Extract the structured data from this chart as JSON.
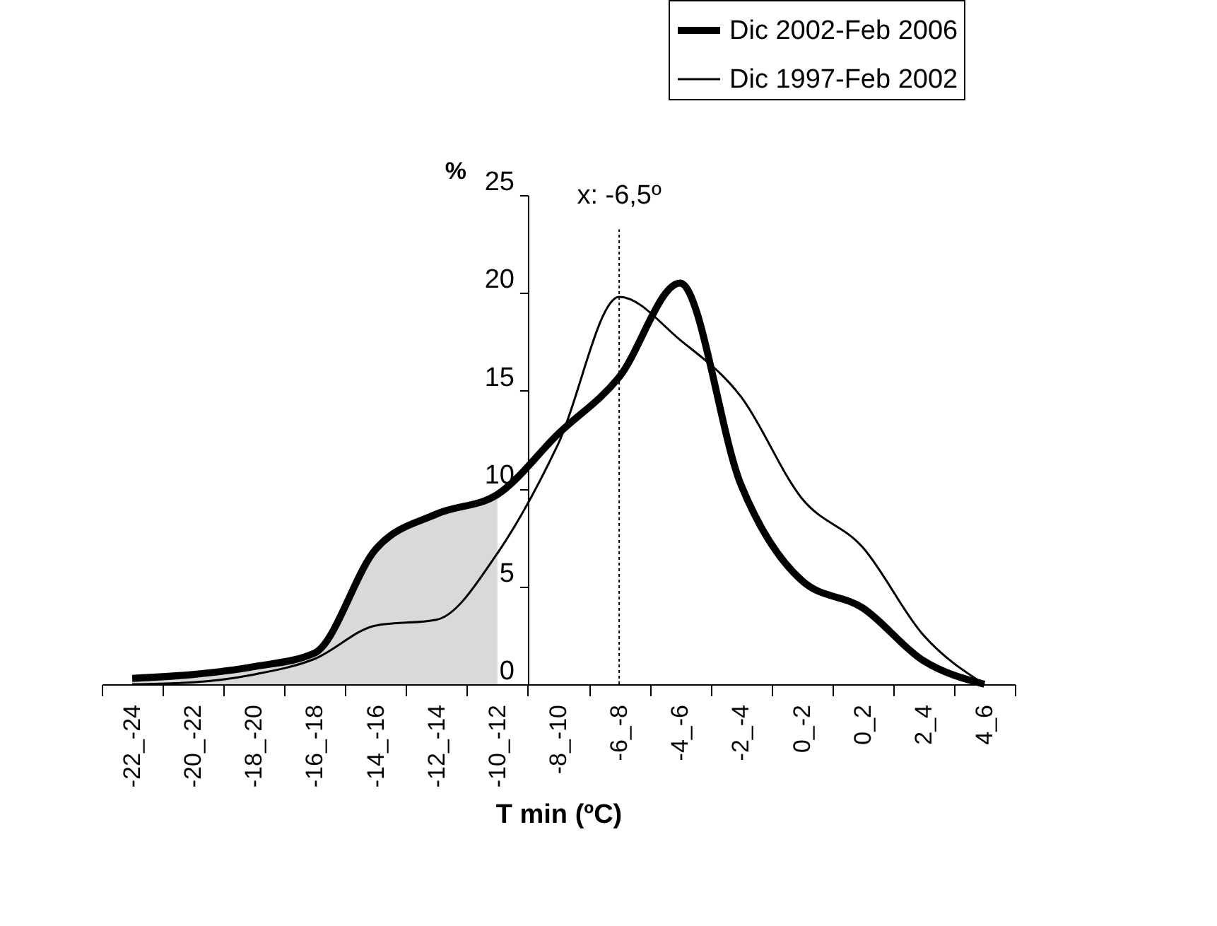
{
  "chart_data": {
    "type": "line",
    "categories": [
      "-22_-24",
      "-20_-22",
      "-18_-20",
      "-16_-18",
      "-14_-16",
      "-12_-14",
      "-10_-12",
      "-8_-10",
      "-6_-8",
      "-4_-6",
      "-2_-4",
      "0_-2",
      "0_2",
      "2_4",
      "4_6"
    ],
    "xlabel": "T min (ºC)",
    "ylabel": "%",
    "ylim": [
      0,
      25
    ],
    "yticks": [
      0,
      5,
      10,
      15,
      20,
      25
    ],
    "series": [
      {
        "type": "area",
        "color": "#d9d9d9",
        "values": [
          0.3,
          0.5,
          0.9,
          1.6,
          6.9,
          8.7,
          9.7,
          null,
          null,
          null,
          null,
          null,
          null,
          null,
          null
        ]
      },
      {
        "name": "Dic 2002-Feb 2006",
        "color": "#000000",
        "values": [
          0.3,
          0.5,
          0.9,
          1.6,
          6.9,
          8.7,
          9.7,
          12.8,
          15.7,
          20.5,
          10.2,
          5.3,
          3.9,
          1.2,
          0
        ]
      },
      {
        "name": "Dic 1997-Feb 2002",
        "color": "#000000",
        "values": [
          0.0,
          0.1,
          0.5,
          1.3,
          3.0,
          3.3,
          6.7,
          12.3,
          19.8,
          17.6,
          14.7,
          9.5,
          7.0,
          2.5,
          0
        ]
      }
    ],
    "ref_lines": [
      {
        "axis": "x",
        "value": "-6_-8",
        "label": "x: -6,5º",
        "line_style": "dotted"
      }
    ],
    "legend": "top right",
    "grid": false,
    "marker": "none",
    "line_style": "solid"
  }
}
